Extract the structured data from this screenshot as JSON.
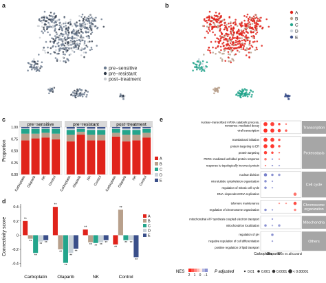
{
  "panel_labels": [
    "a",
    "b",
    "c",
    "d",
    "e"
  ],
  "panel_a": {
    "legend": [
      {
        "label": "pre−sensitive",
        "color": "#6b7b8f"
      },
      {
        "label": "pre−resistant",
        "color": "#2f3a48"
      },
      {
        "label": "post−treatment",
        "color": "#c9cdd2"
      }
    ]
  },
  "panel_b": {
    "legend": [
      {
        "label": "A",
        "color": "#e0231b"
      },
      {
        "label": "B",
        "color": "#b8a08c"
      },
      {
        "label": "C",
        "color": "#23a58c"
      },
      {
        "label": "D",
        "color": "#c9d2d9"
      },
      {
        "label": "E",
        "color": "#3a4f8a"
      }
    ]
  },
  "chart_data": [
    {
      "type": "bar",
      "panel": "c",
      "stacked": true,
      "facets": [
        "pre−sensitive",
        "pre−resistant",
        "post−treatment"
      ],
      "categories": [
        "Carboplatin",
        "Olaparib",
        "NK",
        "Control"
      ],
      "ylabel": "Proportion",
      "yticks": [
        "0.00",
        "0.25",
        "0.50",
        "0.75",
        "1.00"
      ],
      "ylim": [
        0,
        1
      ],
      "legend_placement": "right",
      "series": [
        {
          "name": "A",
          "color": "#e0231b",
          "values": [
            [
              0.72,
              0.76,
              0.78,
              0.74
            ],
            [
              0.7,
              0.84,
              0.72,
              0.72
            ],
            [
              0.8,
              0.7,
              0.72,
              0.78
            ]
          ]
        },
        {
          "name": "B",
          "color": "#b8a08c",
          "values": [
            [
              0.14,
              0.1,
              0.1,
              0.12
            ],
            [
              0.14,
              0.06,
              0.12,
              0.12
            ],
            [
              0.08,
              0.14,
              0.12,
              0.1
            ]
          ]
        },
        {
          "name": "C",
          "color": "#23a58c",
          "values": [
            [
              0.1,
              0.1,
              0.08,
              0.1
            ],
            [
              0.1,
              0.06,
              0.1,
              0.1
            ],
            [
              0.08,
              0.1,
              0.1,
              0.08
            ]
          ]
        },
        {
          "name": "D",
          "color": "#c9d2d9",
          "values": [
            [
              0.02,
              0.02,
              0.02,
              0.02
            ],
            [
              0.03,
              0.02,
              0.03,
              0.03
            ],
            [
              0.02,
              0.03,
              0.03,
              0.02
            ]
          ]
        },
        {
          "name": "E",
          "color": "#3a4f8a",
          "values": [
            [
              0.02,
              0.02,
              0.02,
              0.02
            ],
            [
              0.03,
              0.02,
              0.03,
              0.03
            ],
            [
              0.02,
              0.03,
              0.03,
              0.02
            ]
          ]
        }
      ]
    },
    {
      "type": "bar",
      "panel": "d",
      "categories": [
        "Carboplatin",
        "Olaparib",
        "NK",
        "Control"
      ],
      "ylabel": "Connectivity score",
      "yticks": [
        0.4,
        0.2,
        0,
        -0.2,
        -0.4
      ],
      "ylim": [
        -0.5,
        0.45
      ],
      "legend_placement": "right",
      "significance_label": "**",
      "series": [
        {
          "name": "A",
          "color": "#e0231b",
          "values": [
            0.2,
            0.4,
            0.08,
            -0.13
          ]
        },
        {
          "name": "B",
          "color": "#b8a08c",
          "values": [
            -0.05,
            -0.2,
            -0.1,
            0.36
          ]
        },
        {
          "name": "C",
          "color": "#23a58c",
          "values": [
            -0.25,
            -0.39,
            -0.11,
            -0.07
          ]
        },
        {
          "name": "D",
          "color": "#c9d2d9",
          "values": [
            -0.09,
            -0.25,
            -0.1,
            -0.07
          ]
        },
        {
          "name": "E",
          "color": "#3a4f8a",
          "values": [
            -0.07,
            -0.19,
            -0.07,
            -0.31
          ]
        }
      ]
    },
    {
      "type": "scatter",
      "panel": "e",
      "x": [
        "Carboplatin",
        "Olaparib",
        "NK",
        "A vs all",
        "Control"
      ],
      "groups": [
        {
          "name": "Transcription",
          "terms": [
            "nuclear−transcribed mRNA catabolic process, nonsense−mediated decay",
            "viral transcription"
          ]
        },
        {
          "name": "Proteostasis",
          "terms": [
            "translational initiation",
            "protein targeting to ER",
            "protein targeting",
            "PERK−mediated unfolded protein response",
            "response to topologically incorrect protein"
          ]
        },
        {
          "name": "Cell cycle",
          "terms": [
            "nuclear division",
            "microtubule cytoskeleton organization",
            "regulation of mitotic cell cycle",
            "DNA−dependent DNA replication"
          ]
        },
        {
          "name": "Chromosome organization",
          "terms": [
            "telomere maintenance",
            "regulation of chromosome organization"
          ]
        },
        {
          "name": "Mitochondria",
          "terms": [
            "mitochondrial ATP synthesis coupled electron transport",
            "mitochondrion localization"
          ]
        },
        {
          "name": "Others",
          "terms": [
            "regulation of pH",
            "negative regulation of cell differentiation",
            "positive regulation of lipid transport"
          ]
        }
      ],
      "points": [
        {
          "term": 0,
          "x": 0,
          "nes": 1.8,
          "p": 1e-05
        },
        {
          "term": 0,
          "x": 1,
          "nes": 1.7,
          "p": 1e-05
        },
        {
          "term": 0,
          "x": 2,
          "nes": 1.6,
          "p": 0.001
        },
        {
          "term": 0,
          "x": 3,
          "nes": 1.2,
          "p": 0.01
        },
        {
          "term": 1,
          "x": 0,
          "nes": 1.9,
          "p": 1e-05
        },
        {
          "term": 1,
          "x": 1,
          "nes": 1.8,
          "p": 1e-05
        },
        {
          "term": 1,
          "x": 2,
          "nes": 1.7,
          "p": 0.0001
        },
        {
          "term": 1,
          "x": 3,
          "nes": 1.4,
          "p": 0.001
        },
        {
          "term": 2,
          "x": 0,
          "nes": 1.8,
          "p": 1e-05
        },
        {
          "term": 2,
          "x": 1,
          "nes": 1.7,
          "p": 1e-05
        },
        {
          "term": 2,
          "x": 2,
          "nes": 1.4,
          "p": 0.001
        },
        {
          "term": 3,
          "x": 0,
          "nes": 1.8,
          "p": 1e-05
        },
        {
          "term": 3,
          "x": 1,
          "nes": 1.8,
          "p": 1e-05
        },
        {
          "term": 3,
          "x": 2,
          "nes": 1.5,
          "p": 0.001
        },
        {
          "term": 4,
          "x": 0,
          "nes": 1.7,
          "p": 0.0001
        },
        {
          "term": 4,
          "x": 1,
          "nes": 1.6,
          "p": 0.001
        },
        {
          "term": 4,
          "x": 2,
          "nes": 1.2,
          "p": 0.01
        },
        {
          "term": 5,
          "x": 0,
          "nes": 1.2,
          "p": 0.001
        },
        {
          "term": 5,
          "x": 1,
          "nes": -0.8,
          "p": 0.01
        },
        {
          "term": 5,
          "x": 2,
          "nes": 0.8,
          "p": 0.01
        },
        {
          "term": 6,
          "x": 0,
          "nes": 1.0,
          "p": 0.01
        },
        {
          "term": 6,
          "x": 1,
          "nes": -0.8,
          "p": 0.01
        },
        {
          "term": 6,
          "x": 2,
          "nes": -0.6,
          "p": 0.01
        },
        {
          "term": 7,
          "x": 0,
          "nes": -1.2,
          "p": 0.0001
        },
        {
          "term": 7,
          "x": 1,
          "nes": -1.0,
          "p": 0.001
        },
        {
          "term": 7,
          "x": 2,
          "nes": -0.8,
          "p": 0.001
        },
        {
          "term": 8,
          "x": 0,
          "nes": -1.0,
          "p": 0.001
        },
        {
          "term": 8,
          "x": 1,
          "nes": -0.8,
          "p": 0.01
        },
        {
          "term": 9,
          "x": 0,
          "nes": -1.0,
          "p": 0.001
        },
        {
          "term": 9,
          "x": 1,
          "nes": -0.6,
          "p": 0.01
        },
        {
          "term": 10,
          "x": 4,
          "nes": 1.2,
          "p": 0.0001
        },
        {
          "term": 11,
          "x": 2,
          "nes": 0.8,
          "p": 0.01
        },
        {
          "term": 11,
          "x": 3,
          "nes": 0.8,
          "p": 0.01
        },
        {
          "term": 11,
          "x": 4,
          "nes": 1.6,
          "p": 0.0001
        },
        {
          "term": 12,
          "x": 0,
          "nes": -1.0,
          "p": 0.001
        },
        {
          "term": 12,
          "x": 1,
          "nes": -0.7,
          "p": 0.01
        },
        {
          "term": 12,
          "x": 4,
          "nes": 1.0,
          "p": 0.001
        },
        {
          "term": 13,
          "x": 1,
          "nes": -0.8,
          "p": 0.01
        },
        {
          "term": 14,
          "x": 0,
          "nes": -1.0,
          "p": 0.001
        },
        {
          "term": 14,
          "x": 1,
          "nes": -0.6,
          "p": 0.01
        },
        {
          "term": 14,
          "x": 2,
          "nes": -0.8,
          "p": 0.001
        },
        {
          "term": 15,
          "x": 1,
          "nes": -1.0,
          "p": 0.001
        },
        {
          "term": 16,
          "x": 1,
          "nes": -0.7,
          "p": 0.01
        }
      ],
      "color_legend": {
        "title": "NES",
        "ticks": [
          "2",
          "1",
          "0",
          "−1"
        ]
      },
      "size_legend": {
        "title": "P adjusted",
        "items": [
          {
            "label": "0.01",
            "p": 0.01
          },
          {
            "label": "0.001",
            "p": 0.001
          },
          {
            "label": "0.0001",
            "p": 0.0001
          },
          {
            "label": "< 0.00001",
            "p": 1e-05
          }
        ]
      }
    }
  ]
}
